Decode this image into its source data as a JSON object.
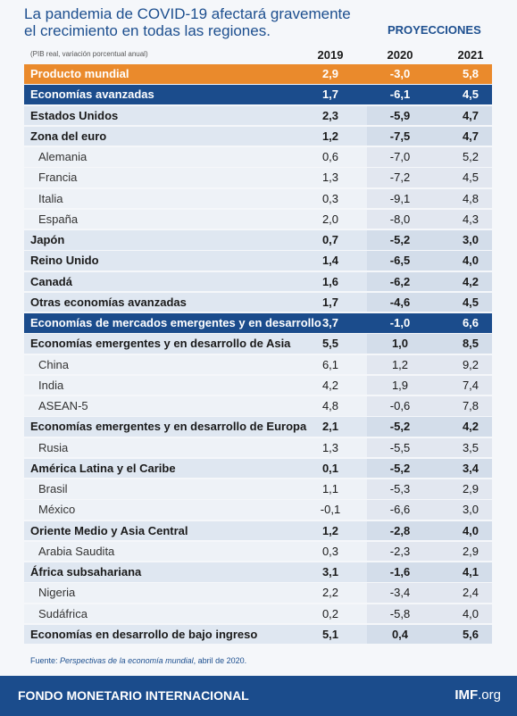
{
  "header": {
    "title_line1": "La pandemia de COVID-19 afectará gravemente",
    "title_line2": "el crecimiento en todas las regiones.",
    "projections": "PROYECCIONES",
    "note": "(PIB real, variación porcentual anual)",
    "columns": [
      "2019",
      "2020",
      "2021"
    ]
  },
  "table": {
    "rows": [
      [
        "Producto mundial",
        "2,9",
        "-3,0",
        "5,8"
      ],
      [
        "Economías avanzadas",
        "1,7",
        "-6,1",
        "4,5"
      ],
      [
        "Estados Unidos",
        "2,3",
        "-5,9",
        "4,7"
      ],
      [
        "Zona del euro",
        "1,2",
        "-7,5",
        "4,7"
      ],
      [
        "Alemania",
        "0,6",
        "-7,0",
        "5,2"
      ],
      [
        "Francia",
        "1,3",
        "-7,2",
        "4,5"
      ],
      [
        "Italia",
        "0,3",
        "-9,1",
        "4,8"
      ],
      [
        "España",
        "2,0",
        "-8,0",
        "4,3"
      ],
      [
        "Japón",
        "0,7",
        "-5,2",
        "3,0"
      ],
      [
        "Reino Unido",
        "1,4",
        "-6,5",
        "4,0"
      ],
      [
        "Canadá",
        "1,6",
        "-6,2",
        "4,2"
      ],
      [
        "Otras economías avanzadas",
        "1,7",
        "-4,6",
        "4,5"
      ],
      [
        "Economías de mercados emergentes y en desarrollo",
        "3,7",
        "-1,0",
        "6,6"
      ],
      [
        "Economías emergentes y en desarrollo de Asia",
        "5,5",
        "1,0",
        "8,5"
      ],
      [
        "China",
        "6,1",
        "1,2",
        "9,2"
      ],
      [
        "India",
        "4,2",
        "1,9",
        "7,4"
      ],
      [
        "ASEAN-5",
        "4,8",
        "-0,6",
        "7,8"
      ],
      [
        "Economías emergentes y en desarrollo de Europa",
        "2,1",
        "-5,2",
        "4,2"
      ],
      [
        "Rusia",
        "1,3",
        "-5,5",
        "3,5"
      ],
      [
        "América Latina y el Caribe",
        "0,1",
        "-5,2",
        "3,4"
      ],
      [
        "Brasil",
        "1,1",
        "-5,3",
        "2,9"
      ],
      [
        "México",
        "-0,1",
        "-6,6",
        "3,0"
      ],
      [
        "Oriente Medio y Asia Central",
        "1,2",
        "-2,8",
        "4,0"
      ],
      [
        "Arabia Saudita",
        "0,3",
        "-2,3",
        "2,9"
      ],
      [
        "África subsahariana",
        "3,1",
        "-1,6",
        "4,1"
      ],
      [
        "Nigeria",
        "2,2",
        "-3,4",
        "2,4"
      ],
      [
        "Sudáfrica",
        "0,2",
        "-5,8",
        "4,0"
      ],
      [
        "Economías en desarrollo de bajo ingreso",
        "5,1",
        "0,4",
        "5,6"
      ]
    ]
  },
  "footer": {
    "source_prefix": "Fuente: ",
    "source_title": "Perspectivas de la economía mundial",
    "source_suffix": ", abril de 2020.",
    "org": "FONDO MONETARIO INTERNACIONAL",
    "site_bold": "IMF",
    "site_rest": ".org"
  }
}
